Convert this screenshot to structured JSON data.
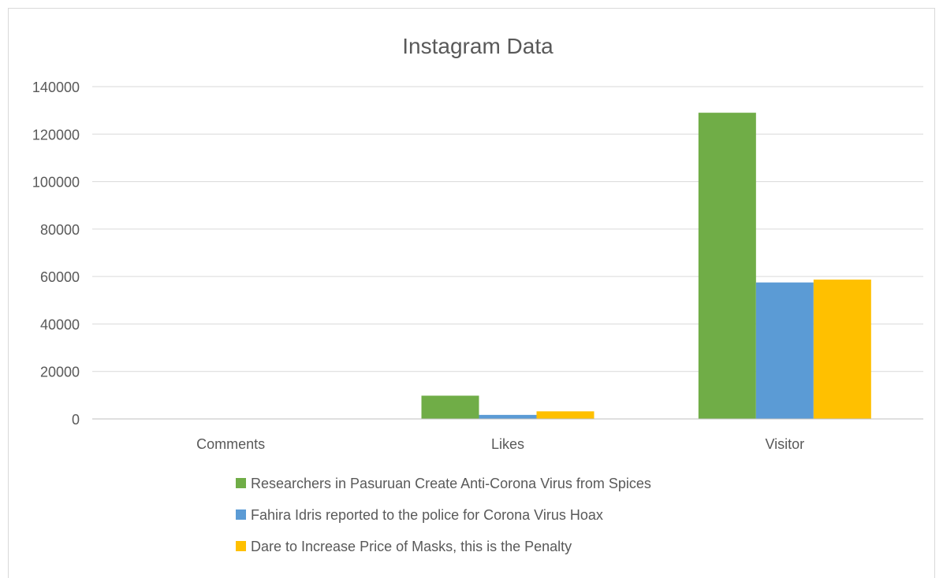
{
  "chart_data": {
    "type": "bar",
    "title": "Instagram Data",
    "xlabel": "",
    "ylabel": "",
    "categories": [
      "Comments",
      "Likes",
      "Visitor"
    ],
    "ylim": [
      0,
      140000
    ],
    "yticks": [
      0,
      20000,
      40000,
      60000,
      80000,
      100000,
      120000,
      140000
    ],
    "grid": true,
    "legend_position": "bottom",
    "series": [
      {
        "name": "Researchers in Pasuruan Create Anti-Corona Virus from Spices",
        "color": "#70AD47",
        "values": [
          150,
          9800,
          129000
        ]
      },
      {
        "name": "Fahira Idris reported to the police for Corona Virus Hoax",
        "color": "#5B9BD5",
        "values": [
          40,
          1700,
          57500
        ]
      },
      {
        "name": "Dare to Increase Price of Masks, this is the Penalty",
        "color": "#FFC000",
        "values": [
          60,
          3200,
          58700
        ]
      }
    ]
  }
}
